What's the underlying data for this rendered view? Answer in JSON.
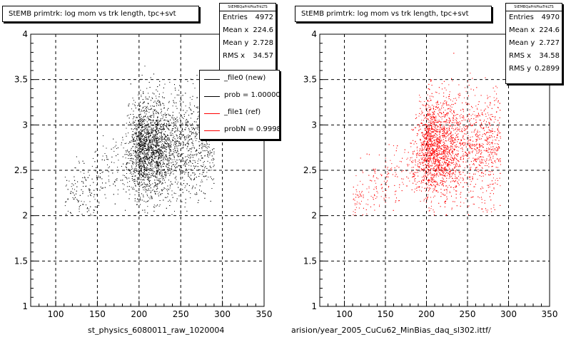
{
  "colors": {
    "file0": "#000000",
    "file1": "#ff0000"
  },
  "panels": [
    {
      "title": "StEMB primtrk: log mom vs trk length, tpc+svt",
      "stats_header": "StEMBQaPrkPkaTrkLTS",
      "stats": [
        {
          "key": "Entries",
          "value": "4972"
        },
        {
          "key": "Mean x",
          "value": "224.6"
        },
        {
          "key": "Mean y",
          "value": "2.728"
        },
        {
          "key": "RMS x",
          "value": "34.57"
        }
      ],
      "legend": [
        {
          "label": "_file0 (new)",
          "color": "#000000"
        },
        {
          "label": "prob = 1.000000",
          "color": "#000000"
        },
        {
          "label": "_file1 (ref)",
          "color": "#ff0000"
        },
        {
          "label": "probN = 0.999870",
          "color": "#ff0000"
        }
      ],
      "footer": "st_physics_6080011_raw_1020004"
    },
    {
      "title": "StEMB primtrk: log mom vs trk length, tpc+svt",
      "stats_header": "StEMBQaPrkPkaTrkLTS",
      "stats": [
        {
          "key": "Entries",
          "value": "4970"
        },
        {
          "key": "Mean x",
          "value": "224.6"
        },
        {
          "key": "Mean y",
          "value": "2.727"
        },
        {
          "key": "RMS x",
          "value": "34.58"
        },
        {
          "key": "RMS y",
          "value": "0.2899"
        }
      ],
      "footer": "arision/year_2005_CuCu62_MinBias_daq_sl302.ittf/"
    }
  ],
  "chart_data": [
    {
      "type": "scatter",
      "title": "StEMB primtrk: log mom vs trk length, tpc+svt",
      "xlabel": "",
      "ylabel": "",
      "xlim": [
        70,
        350
      ],
      "ylim": [
        1,
        4
      ],
      "x_ticks": [
        100,
        150,
        200,
        250,
        300,
        350
      ],
      "y_ticks": [
        1,
        1.5,
        2,
        2.5,
        3,
        3.5,
        4
      ],
      "grid": true,
      "legend_position": "top-right",
      "series": [
        {
          "name": "_file0 (new)",
          "color": "#000000",
          "entries": 4972,
          "mean_x": 224.6,
          "mean_y": 2.728,
          "rms_x": 34.57,
          "rms_y": 0.29
        }
      ]
    },
    {
      "type": "scatter",
      "title": "StEMB primtrk: log mom vs trk length, tpc+svt",
      "xlabel": "",
      "ylabel": "",
      "xlim": [
        70,
        350
      ],
      "ylim": [
        1,
        4
      ],
      "x_ticks": [
        100,
        150,
        200,
        250,
        300,
        350
      ],
      "y_ticks": [
        1,
        1.5,
        2,
        2.5,
        3,
        3.5,
        4
      ],
      "grid": true,
      "series": [
        {
          "name": "_file1 (ref)",
          "color": "#ff0000",
          "entries": 4970,
          "mean_x": 224.6,
          "mean_y": 2.727,
          "rms_x": 34.58,
          "rms_y": 0.2899
        }
      ]
    }
  ]
}
